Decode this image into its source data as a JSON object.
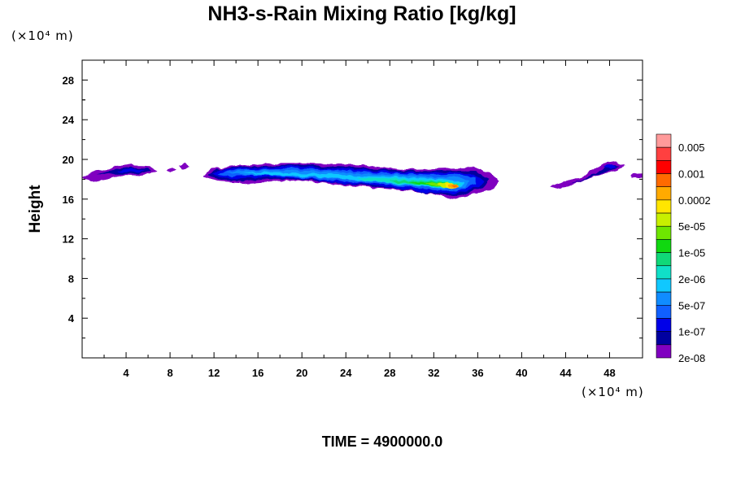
{
  "chart_data": {
    "type": "contour",
    "title": "NH3-s-Rain Mixing Ratio [kg/kg]",
    "ylabel": "Height",
    "x_unit_label": "(×10⁴ m)",
    "y_unit_label": "(×10⁴ m)",
    "footer": "TIME = 4900000.0",
    "xlim": [
      0,
      51
    ],
    "ylim": [
      0,
      30
    ],
    "x_ticks": [
      "4",
      "8",
      "12",
      "16",
      "20",
      "24",
      "28",
      "32",
      "36",
      "40",
      "44",
      "48"
    ],
    "y_ticks": [
      "4",
      "8",
      "12",
      "16",
      "20",
      "24",
      "28"
    ],
    "colorbar": {
      "labels": [
        "0.005",
        "0.001",
        "0.0002",
        "5e-05",
        "1e-05",
        "2e-06",
        "5e-07",
        "1e-07",
        "2e-08"
      ],
      "colors": [
        "#ff9a9a",
        "#ff4040",
        "#ff0000",
        "#ff6a00",
        "#ffaa00",
        "#ffe600",
        "#c8f000",
        "#6ee600",
        "#10d810",
        "#10d878",
        "#10e0c8",
        "#10c8ff",
        "#108cff",
        "#1060ff",
        "#0000e8",
        "#0000a0",
        "#8000c0"
      ]
    },
    "regions": [
      {
        "name": "left-patch",
        "x": [
          0,
          6.5
        ],
        "y": [
          18.0,
          19.5
        ],
        "max_level": "1e-07"
      },
      {
        "name": "main-band",
        "x": [
          11,
          38
        ],
        "y": [
          16.0,
          19.6
        ],
        "max_level": "0.001",
        "peak_x": 34,
        "peak_y": 17.3
      },
      {
        "name": "right-patch",
        "x": [
          42.5,
          51
        ],
        "y": [
          17.0,
          19.8
        ],
        "max_level": "1e-07"
      }
    ]
  }
}
